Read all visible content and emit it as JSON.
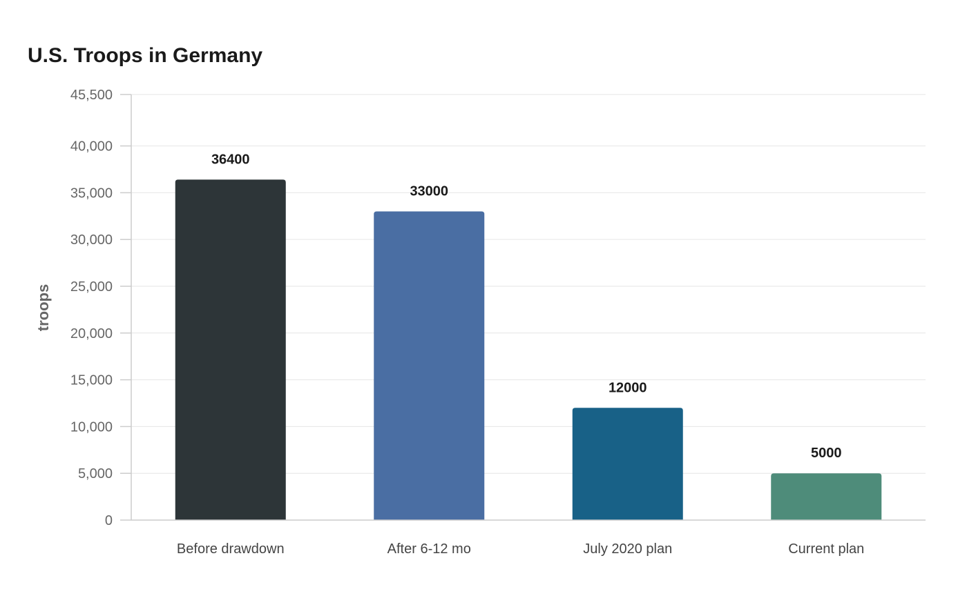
{
  "chart_data": {
    "type": "bar",
    "title": "U.S. Troops in Germany",
    "xlabel": "",
    "ylabel": "troops",
    "categories": [
      "Before drawdown",
      "After 6-12 mo",
      "July 2020 plan",
      "Current plan"
    ],
    "values": [
      36400,
      33000,
      12000,
      5000
    ],
    "value_labels": [
      "36400",
      "33000",
      "12000",
      "5000"
    ],
    "colors": [
      "#2d3538",
      "#4a6ea3",
      "#186187",
      "#4e8c7a"
    ],
    "ylim": [
      0,
      45500
    ],
    "yticks": [
      0,
      5000,
      10000,
      15000,
      20000,
      25000,
      30000,
      35000,
      40000,
      45500
    ],
    "ytick_labels": [
      "0",
      "5,000",
      "10,000",
      "15,000",
      "20,000",
      "25,000",
      "30,000",
      "35,000",
      "40,000",
      "45,500"
    ],
    "grid": true,
    "legend": "none"
  }
}
